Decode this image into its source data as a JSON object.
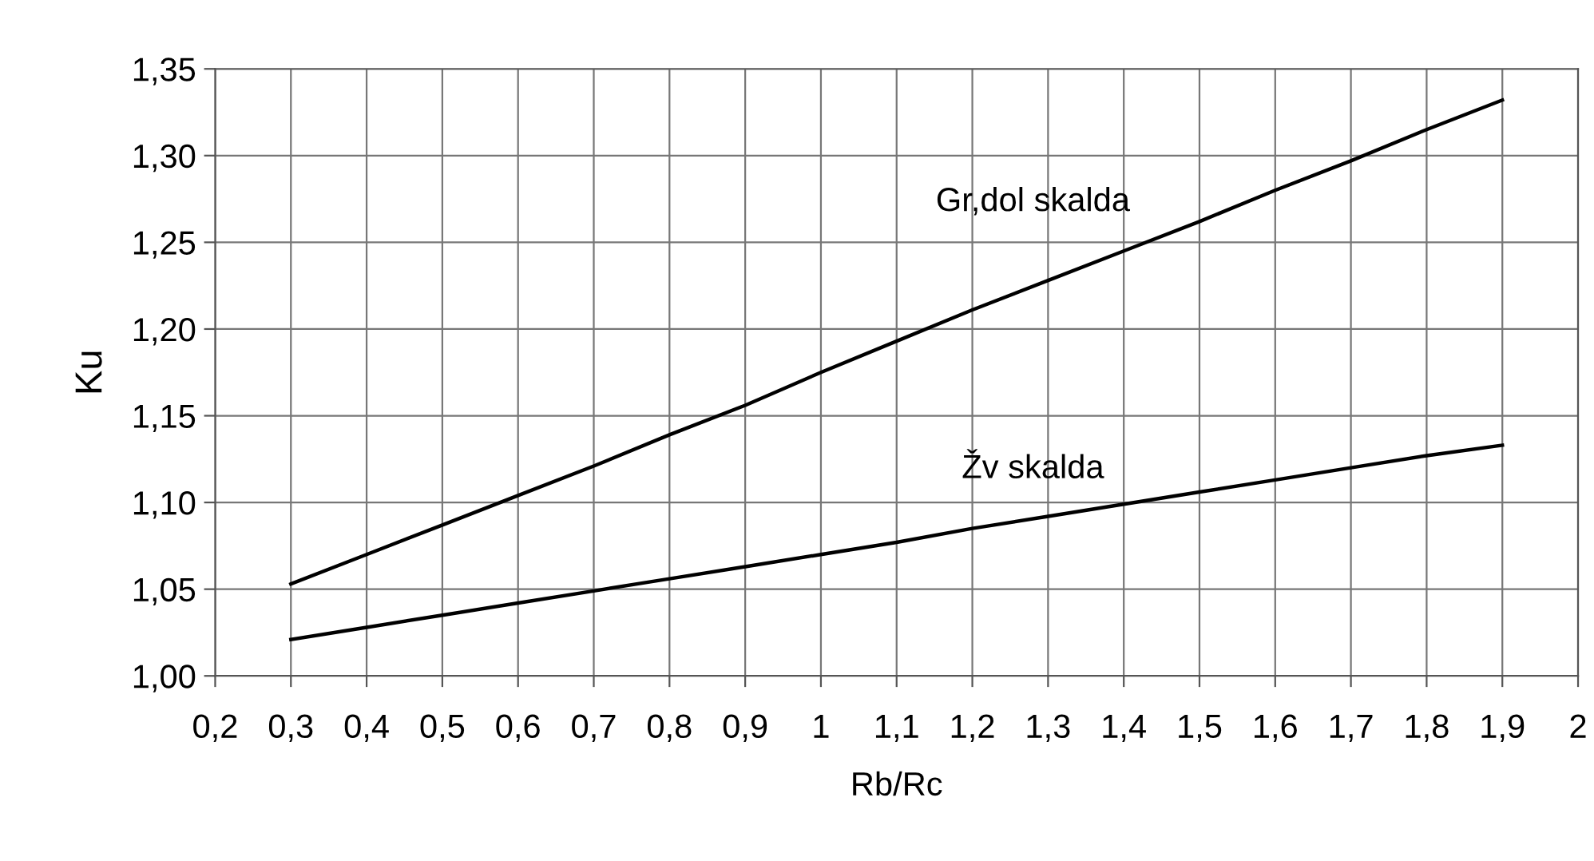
{
  "chart_data": {
    "type": "line",
    "xlabel": "Rb/Rc",
    "ylabel": "Ku",
    "x": [
      0.3,
      0.4,
      0.5,
      0.6,
      0.7,
      0.8,
      0.9,
      1.0,
      1.1,
      1.2,
      1.3,
      1.4,
      1.5,
      1.6,
      1.7,
      1.8,
      1.9
    ],
    "series": [
      {
        "name": "Gr,dol skalda",
        "color": "#000000",
        "values": [
          1.053,
          1.07,
          1.087,
          1.104,
          1.121,
          1.139,
          1.156,
          1.175,
          1.193,
          1.211,
          1.228,
          1.245,
          1.262,
          1.28,
          1.297,
          1.315,
          1.332
        ]
      },
      {
        "name": "Žv skalda",
        "color": "#000000",
        "values": [
          1.021,
          1.028,
          1.035,
          1.042,
          1.049,
          1.056,
          1.063,
          1.07,
          1.077,
          1.085,
          1.092,
          1.099,
          1.106,
          1.113,
          1.12,
          1.127,
          1.133
        ]
      }
    ],
    "xlim": [
      0.2,
      2.0
    ],
    "xticks": [
      {
        "value": 0.2,
        "label": "0,2"
      },
      {
        "value": 0.3,
        "label": "0,3"
      },
      {
        "value": 0.4,
        "label": "0,4"
      },
      {
        "value": 0.5,
        "label": "0,5"
      },
      {
        "value": 0.6,
        "label": "0,6"
      },
      {
        "value": 0.7,
        "label": "0,7"
      },
      {
        "value": 0.8,
        "label": "0,8"
      },
      {
        "value": 0.9,
        "label": "0,9"
      },
      1,
      {
        "value": 1.1,
        "label": "1,1"
      },
      {
        "value": 1.2,
        "label": "1,2"
      },
      {
        "value": 1.3,
        "label": "1,3"
      },
      {
        "value": 1.4,
        "label": "1,4"
      },
      {
        "value": 1.5,
        "label": "1,5"
      },
      {
        "value": 1.6,
        "label": "1,6"
      },
      {
        "value": 1.7,
        "label": "1,7"
      },
      {
        "value": 1.8,
        "label": "1,8"
      },
      {
        "value": 1.9,
        "label": "1,9"
      },
      2
    ],
    "ylim": [
      1.0,
      1.35
    ],
    "yticks": [
      {
        "value": 1.0,
        "label": "1,00"
      },
      {
        "value": 1.05,
        "label": "1,05"
      },
      {
        "value": 1.1,
        "label": "1,10"
      },
      {
        "value": 1.15,
        "label": "1,15"
      },
      {
        "value": 1.2,
        "label": "1,20"
      },
      {
        "value": 1.25,
        "label": "1,25"
      },
      {
        "value": 1.3,
        "label": "1,30"
      },
      {
        "value": 1.35,
        "label": "1,35"
      }
    ],
    "grid": true,
    "legend": false,
    "marker": "none",
    "line_style": "solid"
  }
}
